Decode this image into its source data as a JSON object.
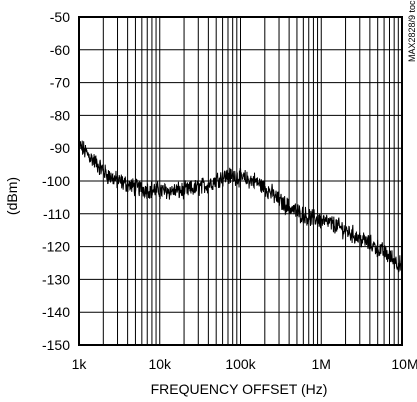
{
  "chart_data": {
    "type": "line",
    "title": "",
    "xlabel": "FREQUENCY OFFSET (Hz)",
    "ylabel": "(dBm)",
    "x_scale": "log",
    "xlim": [
      1000,
      10000000
    ],
    "ylim": [
      -150,
      -50
    ],
    "x_ticks": [
      1000,
      10000,
      100000,
      1000000,
      10000000
    ],
    "x_tick_labels": [
      "1k",
      "10k",
      "100k",
      "1M",
      "10M"
    ],
    "y_ticks": [
      -50,
      -60,
      -70,
      -80,
      -90,
      -100,
      -110,
      -120,
      -130,
      -140,
      -150
    ],
    "y_tick_labels": [
      "-50",
      "-60",
      "-70",
      "-80",
      "-90",
      "-100",
      "-110",
      "-120",
      "-130",
      "-140",
      "-150"
    ],
    "grid": true,
    "side_code": "MAX2828/9 toc22",
    "series": [
      {
        "color": "#000000",
        "x": [
          1000,
          1300,
          1700,
          2200,
          3000,
          4000,
          5000,
          7000,
          10000,
          14000,
          20000,
          30000,
          40000,
          55000,
          70000,
          85000,
          100000,
          120000,
          150000,
          200000,
          250000,
          300000,
          400000,
          500000,
          700000,
          1000000,
          1500000,
          2000000,
          3000000,
          5000000,
          7000000,
          10000000
        ],
        "y": [
          -89,
          -92,
          -95,
          -98,
          -100,
          -101,
          -102,
          -102.5,
          -103,
          -103,
          -103,
          -102,
          -101,
          -99,
          -98.5,
          -98.5,
          -99,
          -99.5,
          -100,
          -102,
          -104,
          -106,
          -108,
          -109.5,
          -111,
          -112,
          -113.5,
          -115,
          -117.5,
          -120.5,
          -123,
          -126
        ]
      }
    ]
  }
}
